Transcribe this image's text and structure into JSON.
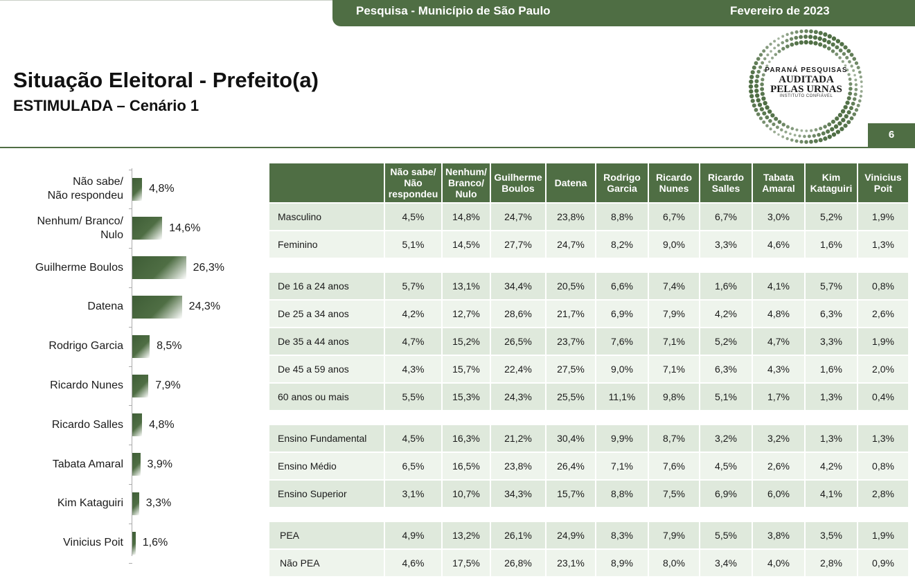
{
  "header": {
    "survey": "Pesquisa - Município de São Paulo",
    "date": "Fevereiro de 2023",
    "page_number": "6"
  },
  "title": "Situação Eleitoral - Prefeito(a)",
  "subtitle": "ESTIMULADA – Cenário 1",
  "logo": {
    "line1": "PARANÁ PESQUISAS",
    "line2": "AUDITADA",
    "line3": "PELAS URNAS",
    "line4": "INSTITUTO CONFIÁVEL"
  },
  "colors": {
    "brand_green": "#4f6e44",
    "row_light": "#dfe9dc",
    "row_lighter": "#eef4ec"
  },
  "chart_data": [
    {
      "type": "bar",
      "orientation": "horizontal",
      "categories": [
        "Não sabe/\nNão respondeu",
        "Nenhum/ Branco/\nNulo",
        "Guilherme Boulos",
        "Datena",
        "Rodrigo Garcia",
        "Ricardo Nunes",
        "Ricardo Salles",
        "Tabata Amaral",
        "Kim Kataguiri",
        "Vinicius Poit"
      ],
      "values": [
        4.8,
        14.6,
        26.3,
        24.3,
        8.5,
        7.9,
        4.8,
        3.9,
        3.3,
        1.6
      ],
      "value_labels": [
        "4,8%",
        "14,6%",
        "26,3%",
        "24,3%",
        "8,5%",
        "7,9%",
        "4,8%",
        "3,9%",
        "3,3%",
        "1,6%"
      ],
      "title": "",
      "xlabel": "",
      "ylabel": "",
      "legend": "none",
      "grid": false
    },
    {
      "type": "table",
      "columns": [
        "",
        "Não sabe/\nNão\nrespondeu",
        "Nenhum/\nBranco/\nNulo",
        "Guilherme\nBoulos",
        "Datena",
        "Rodrigo\nGarcia",
        "Ricardo\nNunes",
        "Ricardo\nSalles",
        "Tabata\nAmaral",
        "Kim\nKataguiri",
        "Vinicius\nPoit"
      ],
      "groups": [
        {
          "rows": [
            {
              "label": "Masculino",
              "values": [
                "4,5%",
                "14,8%",
                "24,7%",
                "23,8%",
                "8,8%",
                "6,7%",
                "6,7%",
                "3,0%",
                "5,2%",
                "1,9%"
              ]
            },
            {
              "label": "Feminino",
              "values": [
                "5,1%",
                "14,5%",
                "27,7%",
                "24,7%",
                "8,2%",
                "9,0%",
                "3,3%",
                "4,6%",
                "1,6%",
                "1,3%"
              ]
            }
          ]
        },
        {
          "rows": [
            {
              "label": "De 16 a 24 anos",
              "values": [
                "5,7%",
                "13,1%",
                "34,4%",
                "20,5%",
                "6,6%",
                "7,4%",
                "1,6%",
                "4,1%",
                "5,7%",
                "0,8%"
              ]
            },
            {
              "label": "De 25 a 34 anos",
              "values": [
                "4,2%",
                "12,7%",
                "28,6%",
                "21,7%",
                "6,9%",
                "7,9%",
                "4,2%",
                "4,8%",
                "6,3%",
                "2,6%"
              ]
            },
            {
              "label": "De 35 a 44 anos",
              "values": [
                "4,7%",
                "15,2%",
                "26,5%",
                "23,7%",
                "7,6%",
                "7,1%",
                "5,2%",
                "4,7%",
                "3,3%",
                "1,9%"
              ]
            },
            {
              "label": "De 45 a 59 anos",
              "values": [
                "4,3%",
                "15,7%",
                "22,4%",
                "27,5%",
                "9,0%",
                "7,1%",
                "6,3%",
                "4,3%",
                "1,6%",
                "2,0%"
              ]
            },
            {
              "label": "60 anos ou mais",
              "values": [
                "5,5%",
                "15,3%",
                "24,3%",
                "25,5%",
                "11,1%",
                "9,8%",
                "5,1%",
                "1,7%",
                "1,3%",
                "0,4%"
              ]
            }
          ]
        },
        {
          "rows": [
            {
              "label": "Ensino Fundamental",
              "values": [
                "4,5%",
                "16,3%",
                "21,2%",
                "30,4%",
                "9,9%",
                "8,7%",
                "3,2%",
                "3,2%",
                "1,3%",
                "1,3%"
              ]
            },
            {
              "label": "Ensino Médio",
              "values": [
                "6,5%",
                "16,5%",
                "23,8%",
                "26,4%",
                "7,1%",
                "7,6%",
                "4,5%",
                "2,6%",
                "4,2%",
                "0,8%"
              ]
            },
            {
              "label": "Ensino Superior",
              "values": [
                "3,1%",
                "10,7%",
                "34,3%",
                "15,7%",
                "8,8%",
                "7,5%",
                "6,9%",
                "6,0%",
                "4,1%",
                "2,8%"
              ]
            }
          ]
        },
        {
          "rows": [
            {
              "label": "PEA",
              "values": [
                "4,9%",
                "13,2%",
                "26,1%",
                "24,9%",
                "8,3%",
                "7,9%",
                "5,5%",
                "3,8%",
                "3,5%",
                "1,9%"
              ]
            },
            {
              "label": "Não PEA",
              "values": [
                "4,6%",
                "17,5%",
                "26,8%",
                "23,1%",
                "8,9%",
                "8,0%",
                "3,4%",
                "4,0%",
                "2,8%",
                "0,9%"
              ]
            }
          ]
        }
      ]
    }
  ]
}
